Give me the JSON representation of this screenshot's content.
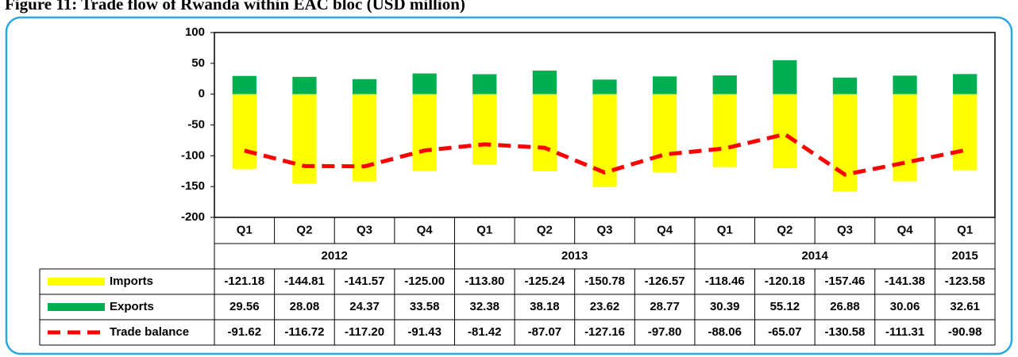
{
  "chart_data": {
    "type": "bar_line",
    "title": "Figure 11: Trade flow of Rwanda within EAC bloc (USD million)",
    "categories": [
      "Q1",
      "Q2",
      "Q3",
      "Q4",
      "Q1",
      "Q2",
      "Q3",
      "Q4",
      "Q1",
      "Q2",
      "Q3",
      "Q4",
      "Q1"
    ],
    "years": [
      "2012",
      "2012",
      "2012",
      "2012",
      "2013",
      "2013",
      "2013",
      "2013",
      "2014",
      "2014",
      "2014",
      "2014",
      "2015"
    ],
    "series": [
      {
        "name": "Imports",
        "type": "bar",
        "color": "#ffff00",
        "values": [
          -121.18,
          -144.81,
          -141.57,
          -125.0,
          -113.8,
          -125.24,
          -150.78,
          -126.57,
          -118.46,
          -120.18,
          -157.46,
          -141.38,
          -123.58
        ],
        "value_labels": [
          "-121.18",
          "-144.81",
          "-141.57",
          "-125.00",
          "-113.80",
          "-125.24",
          "-150.78",
          "-126.57",
          "-118.46",
          "-120.18",
          "-157.46",
          "-141.38",
          "-123.58"
        ]
      },
      {
        "name": "Exports",
        "type": "bar",
        "color": "#00b050",
        "values": [
          29.56,
          28.08,
          24.37,
          33.58,
          32.38,
          38.18,
          23.62,
          28.77,
          30.39,
          55.12,
          26.88,
          30.06,
          32.61
        ],
        "value_labels": [
          "29.56",
          "28.08",
          "24.37",
          "33.58",
          "32.38",
          "38.18",
          "23.62",
          "28.77",
          "30.39",
          "55.12",
          "26.88",
          "30.06",
          "32.61"
        ]
      },
      {
        "name": "Trade balance",
        "type": "line",
        "color": "#ff0000",
        "dashed": true,
        "values": [
          -91.62,
          -116.72,
          -117.2,
          -91.43,
          -81.42,
          -87.07,
          -127.16,
          -97.8,
          -88.06,
          -65.07,
          -130.58,
          -111.31,
          -90.98
        ],
        "value_labels": [
          "-91.62",
          "-116.72",
          "-117.20",
          "-91.43",
          "-81.42",
          "-87.07",
          "-127.16",
          "-97.80",
          "-88.06",
          "-65.07",
          "-130.58",
          "-111.31",
          "-90.98"
        ]
      }
    ],
    "ylim": [
      -200,
      100
    ],
    "yticks": [
      100,
      50,
      0,
      -50,
      -100,
      -150,
      -200
    ],
    "grid": false
  }
}
